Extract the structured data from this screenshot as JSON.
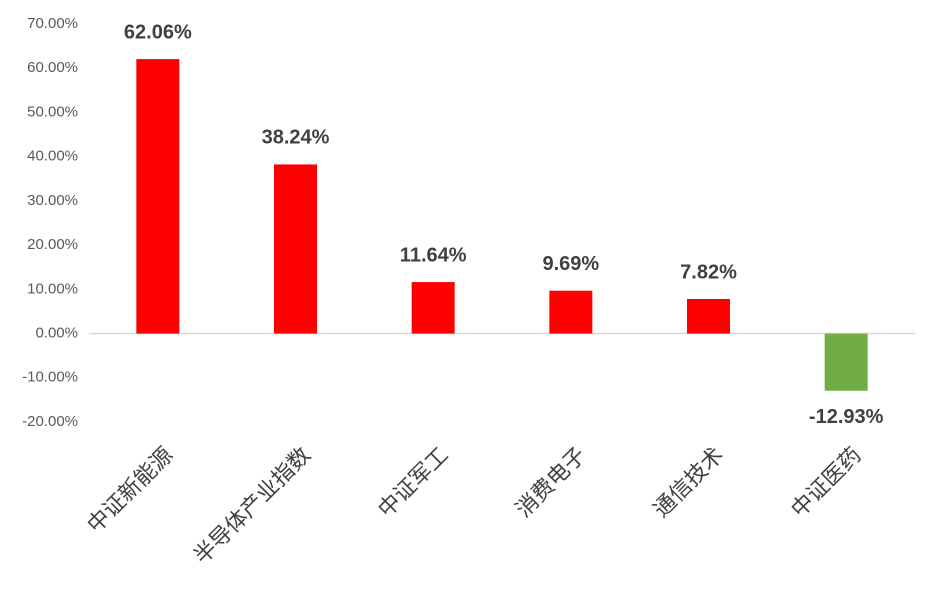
{
  "chart_data": {
    "type": "bar",
    "categories": [
      "中证新能源",
      "半导体产业指数",
      "中证军工",
      "消费电子",
      "通信技术",
      "中证医药"
    ],
    "values": [
      62.06,
      38.24,
      11.64,
      9.69,
      7.82,
      -12.93
    ],
    "value_labels": [
      "62.06%",
      "38.24%",
      "11.64%",
      "9.69%",
      "7.82%",
      "-12.93%"
    ],
    "colors": [
      "#ff0000",
      "#ff0000",
      "#ff0000",
      "#ff0000",
      "#ff0000",
      "#70ad47"
    ],
    "ylim": [
      -20,
      70
    ],
    "yticks": [
      {
        "value": 70,
        "label": "70.00%"
      },
      {
        "value": 60,
        "label": "60.00%"
      },
      {
        "value": 50,
        "label": "50.00%"
      },
      {
        "value": 40,
        "label": "40.00%"
      },
      {
        "value": 30,
        "label": "30.00%"
      },
      {
        "value": 20,
        "label": "20.00%"
      },
      {
        "value": 10,
        "label": "10.00%"
      },
      {
        "value": 0,
        "label": "0.00%"
      },
      {
        "value": -10,
        "label": "-10.00%"
      },
      {
        "value": -20,
        "label": "-20.00%"
      }
    ],
    "grid": false
  }
}
